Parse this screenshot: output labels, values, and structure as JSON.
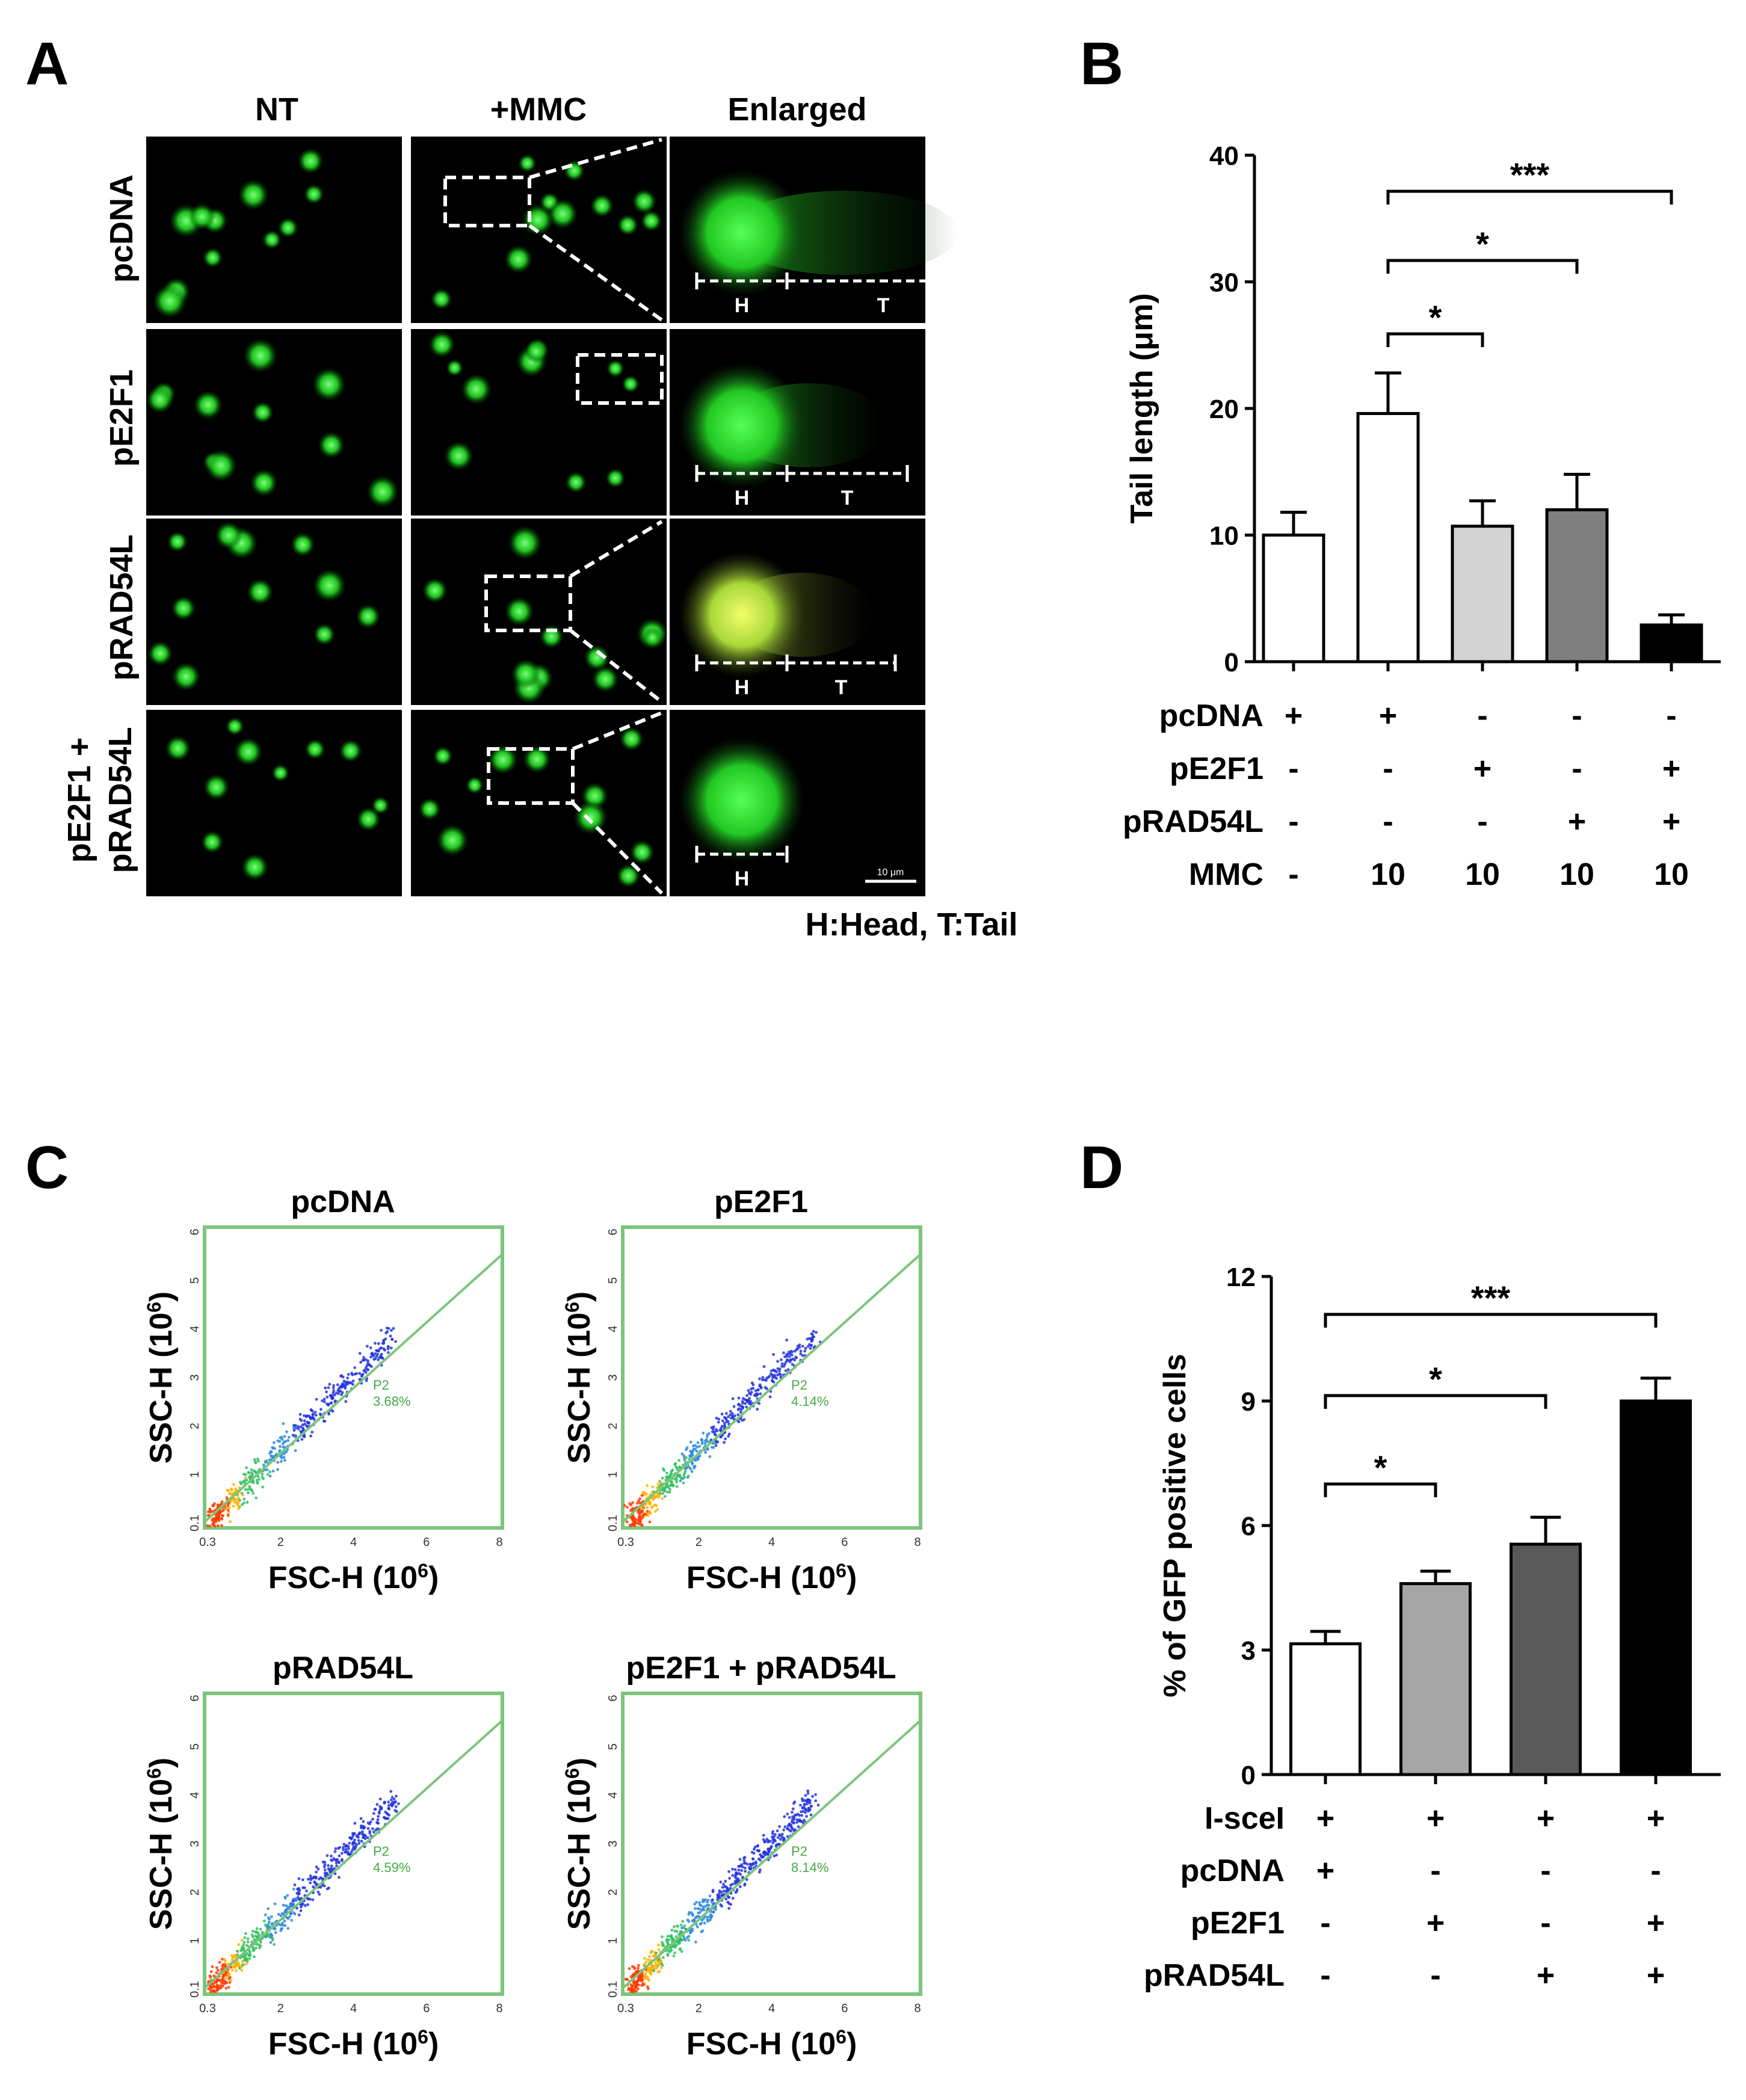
{
  "panel_labels": {
    "a": "A",
    "b": "B",
    "c": "C",
    "d": "D"
  },
  "panel_a": {
    "column_headers": [
      "NT",
      "+MMC",
      "Enlarged"
    ],
    "row_labels": [
      "pcDNA",
      "pE2F1",
      "pRAD54L",
      "pE2F1 +",
      "pRAD54L"
    ],
    "head_marker": "H",
    "tail_marker": "T",
    "scale_bar_label": "10 μm",
    "footnote": "H:Head, T:Tail",
    "colors": {
      "background": "#000000",
      "comet": "#39d33c",
      "comet_yellow": "#c8e640"
    }
  },
  "panel_c": {
    "plot_titles": [
      "pcDNA",
      "pE2F1",
      "pRAD54L",
      "pE2F1 + pRAD54L"
    ],
    "gate_name": "P2",
    "gate_percent": [
      "3.68%",
      "4.14%",
      "4.59%",
      "8.14%"
    ],
    "x_ticks": [
      "0.3",
      "2",
      "4",
      "6",
      "8"
    ],
    "y_ticks": [
      "0.1",
      "1",
      "2",
      "3",
      "4",
      "5",
      "6"
    ],
    "colors": {
      "frame": "#7cc57c",
      "gate_line": "#7cc57c",
      "dots": "#2233dd",
      "dense": "#ffb000"
    }
  },
  "chart_data": [
    {
      "type": "bar",
      "panel": "B",
      "ylabel": "Tail length (μm)",
      "ylim": [
        0,
        40
      ],
      "yticks": [
        "0",
        "10",
        "20",
        "30",
        "40"
      ],
      "values": [
        10,
        19.6,
        10.7,
        12,
        2.9
      ],
      "errors": [
        1.8,
        3.2,
        2.0,
        2.8,
        0.8
      ],
      "bar_colors": [
        "#ffffff",
        "#ffffff",
        "#d3d3d3",
        "#7f7f7f",
        "#000000"
      ],
      "condition_labels": [
        "pcDNA",
        "pE2F1",
        "pRAD54L",
        "MMC"
      ],
      "condition_table": [
        [
          "+",
          "+",
          "-",
          "-",
          "-"
        ],
        [
          "-",
          "-",
          "+",
          "-",
          "+"
        ],
        [
          "-",
          "-",
          "-",
          "+",
          "+"
        ],
        [
          "-",
          "10",
          "10",
          "10",
          "10"
        ]
      ],
      "significance": [
        {
          "from": 1,
          "to": 2,
          "label": "*"
        },
        {
          "from": 1,
          "to": 3,
          "label": "*"
        },
        {
          "from": 1,
          "to": 4,
          "label": "***"
        }
      ]
    },
    {
      "type": "bar",
      "panel": "D",
      "ylabel": "% of GFP positive cells",
      "ylim": [
        0,
        12
      ],
      "yticks": [
        "0",
        "3",
        "6",
        "9",
        "12"
      ],
      "values": [
        3.15,
        4.6,
        5.55,
        9.0
      ],
      "errors": [
        0.3,
        0.3,
        0.65,
        0.55
      ],
      "bar_colors": [
        "#ffffff",
        "#a6a6a6",
        "#595959",
        "#000000"
      ],
      "condition_labels": [
        "I-sceI",
        "pcDNA",
        "pE2F1",
        "pRAD54L"
      ],
      "condition_table": [
        [
          "+",
          "+",
          "+",
          "+"
        ],
        [
          "+",
          "-",
          "-",
          "-"
        ],
        [
          "-",
          "+",
          "-",
          "+"
        ],
        [
          "-",
          "-",
          "+",
          "+"
        ]
      ],
      "significance": [
        {
          "from": 0,
          "to": 1,
          "label": "*"
        },
        {
          "from": 0,
          "to": 2,
          "label": "*"
        },
        {
          "from": 0,
          "to": 3,
          "label": "***"
        }
      ]
    }
  ]
}
